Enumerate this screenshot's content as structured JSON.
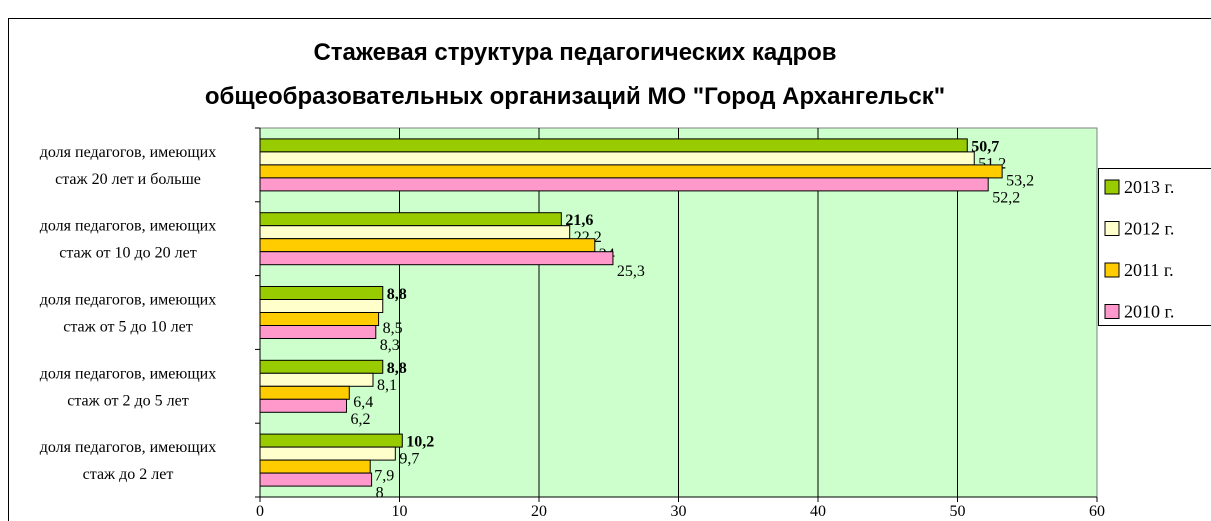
{
  "chart_data": {
    "type": "bar",
    "orientation": "horizontal",
    "title": [
      "Стажевая структура педагогических кадров",
      "общеобразовательных организаций МО \"Город Архангельск\""
    ],
    "categories": [
      [
        "доля педагогов, имеющих",
        "стаж 20 лет и больше"
      ],
      [
        "доля педагогов, имеющих",
        "стаж от 10 до 20 лет"
      ],
      [
        "доля педагогов, имеющих",
        "стаж от 5 до 10 лет"
      ],
      [
        "доля педагогов, имеющих",
        "стаж от 2 до 5 лет"
      ],
      [
        "доля педагогов, имеющих",
        "стаж до 2 лет"
      ]
    ],
    "series": [
      {
        "name": "2013 г.",
        "color": "#99cc00",
        "values": [
          50.7,
          21.6,
          8.8,
          8.8,
          10.2
        ],
        "value_labels": [
          "50,7",
          "21,6",
          "8,8",
          "8,8",
          "10,2"
        ],
        "bold_labels": true
      },
      {
        "name": "2012 г.",
        "color": "#ffffcc",
        "values": [
          51.2,
          22.2,
          8.8,
          8.1,
          9.7
        ],
        "value_labels": [
          "51,2",
          "22,2",
          null,
          "8,1",
          "9,7"
        ]
      },
      {
        "name": "2011 г.",
        "color": "#ffcc00",
        "values": [
          53.2,
          24,
          8.5,
          6.4,
          7.9
        ],
        "value_labels": [
          "53,2",
          "24",
          "8,5",
          "6,4",
          "7,9"
        ]
      },
      {
        "name": "2010 г.",
        "color": "#ff99cc",
        "values": [
          52.2,
          25.3,
          8.3,
          6.2,
          8
        ],
        "value_labels": [
          "52,2",
          "25,3",
          "8,3",
          "6,2",
          "8"
        ]
      }
    ],
    "xlim": [
      0,
      60
    ],
    "xticks": [
      0,
      10,
      20,
      30,
      40,
      50,
      60
    ],
    "grid": true,
    "legend": "right",
    "background": "#ccffcc"
  }
}
